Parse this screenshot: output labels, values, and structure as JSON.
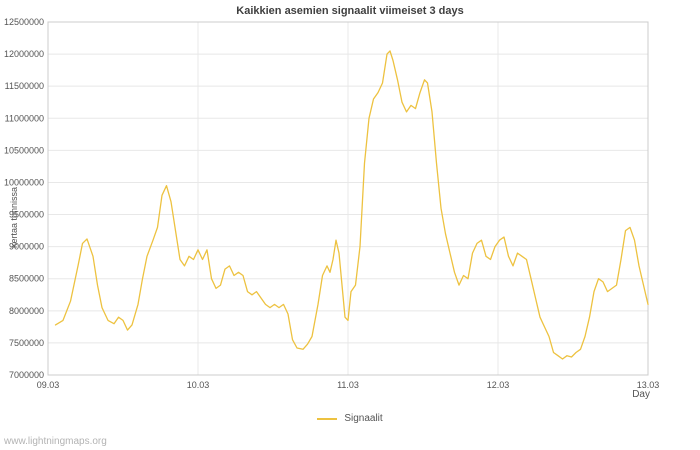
{
  "title": "Kaikkien asemien signaalit viimeiset 3 days",
  "footer": {
    "text": "www.lightningmaps.org"
  },
  "legend": {
    "label": "Signaalit"
  },
  "colors": {
    "line": "#edc240",
    "grid": "#e8e8e8",
    "border": "#cccccc",
    "axis_text": "#545454",
    "title_text": "#3f3f3f"
  },
  "chart_data": {
    "type": "line",
    "title": "Kaikkien asemien signaalit viimeiset 3 days",
    "xlabel": "Day",
    "ylabel": "kertaa tunnissa",
    "legend_position": "bottom-center",
    "grid": true,
    "x_tick_labels": [
      "09.03",
      "10.03",
      "11.03",
      "12.03",
      "13.03"
    ],
    "x_tick_positions": [
      0,
      1,
      2,
      3,
      4
    ],
    "y_ticks": [
      7000000,
      7500000,
      8000000,
      8500000,
      9000000,
      9500000,
      10000000,
      10500000,
      11000000,
      11500000,
      12000000,
      12500000
    ],
    "xlim": [
      0,
      4
    ],
    "ylim": [
      7000000,
      12500000
    ],
    "series": [
      {
        "name": "Signaalit",
        "x": [
          0.05,
          0.1,
          0.15,
          0.2,
          0.23,
          0.26,
          0.3,
          0.33,
          0.36,
          0.4,
          0.44,
          0.47,
          0.5,
          0.53,
          0.56,
          0.6,
          0.63,
          0.66,
          0.7,
          0.73,
          0.76,
          0.79,
          0.82,
          0.85,
          0.88,
          0.91,
          0.94,
          0.97,
          1.0,
          1.03,
          1.06,
          1.09,
          1.12,
          1.15,
          1.18,
          1.21,
          1.24,
          1.27,
          1.3,
          1.33,
          1.36,
          1.39,
          1.42,
          1.45,
          1.48,
          1.51,
          1.54,
          1.57,
          1.6,
          1.63,
          1.66,
          1.7,
          1.73,
          1.76,
          1.8,
          1.83,
          1.86,
          1.88,
          1.9,
          1.92,
          1.94,
          1.96,
          1.98,
          2.0,
          2.02,
          2.05,
          2.08,
          2.11,
          2.14,
          2.17,
          2.2,
          2.23,
          2.26,
          2.28,
          2.3,
          2.33,
          2.36,
          2.39,
          2.42,
          2.45,
          2.48,
          2.51,
          2.53,
          2.56,
          2.59,
          2.62,
          2.65,
          2.68,
          2.71,
          2.74,
          2.77,
          2.8,
          2.83,
          2.86,
          2.89,
          2.92,
          2.95,
          2.98,
          3.01,
          3.04,
          3.07,
          3.1,
          3.13,
          3.16,
          3.19,
          3.22,
          3.25,
          3.28,
          3.31,
          3.34,
          3.37,
          3.4,
          3.43,
          3.46,
          3.49,
          3.52,
          3.55,
          3.58,
          3.61,
          3.64,
          3.67,
          3.7,
          3.73,
          3.76,
          3.79,
          3.82,
          3.85,
          3.88,
          3.91,
          3.94,
          3.97,
          4.0
        ],
        "y": [
          7780000,
          7850000,
          8150000,
          8700000,
          9050000,
          9120000,
          8850000,
          8400000,
          8050000,
          7850000,
          7800000,
          7900000,
          7850000,
          7700000,
          7780000,
          8100000,
          8500000,
          8850000,
          9100000,
          9300000,
          9800000,
          9950000,
          9700000,
          9250000,
          8800000,
          8700000,
          8850000,
          8800000,
          8950000,
          8800000,
          8950000,
          8500000,
          8350000,
          8400000,
          8650000,
          8700000,
          8550000,
          8600000,
          8550000,
          8300000,
          8250000,
          8300000,
          8200000,
          8100000,
          8050000,
          8100000,
          8050000,
          8100000,
          7950000,
          7550000,
          7420000,
          7400000,
          7480000,
          7600000,
          8100000,
          8550000,
          8700000,
          8600000,
          8800000,
          9100000,
          8900000,
          8400000,
          7900000,
          7850000,
          8300000,
          8400000,
          9000000,
          10300000,
          11000000,
          11300000,
          11400000,
          11550000,
          12000000,
          12050000,
          11900000,
          11600000,
          11250000,
          11100000,
          11200000,
          11150000,
          11400000,
          11600000,
          11550000,
          11100000,
          10300000,
          9600000,
          9200000,
          8900000,
          8600000,
          8400000,
          8550000,
          8500000,
          8900000,
          9050000,
          9100000,
          8850000,
          8800000,
          9000000,
          9100000,
          9150000,
          8850000,
          8700000,
          8900000,
          8850000,
          8800000,
          8500000,
          8200000,
          7900000,
          7750000,
          7600000,
          7350000,
          7300000,
          7250000,
          7300000,
          7280000,
          7350000,
          7400000,
          7600000,
          7900000,
          8300000,
          8500000,
          8450000,
          8300000,
          8350000,
          8400000,
          8800000,
          9250000,
          9300000,
          9100000,
          8700000,
          8400000,
          8100000
        ]
      }
    ]
  }
}
